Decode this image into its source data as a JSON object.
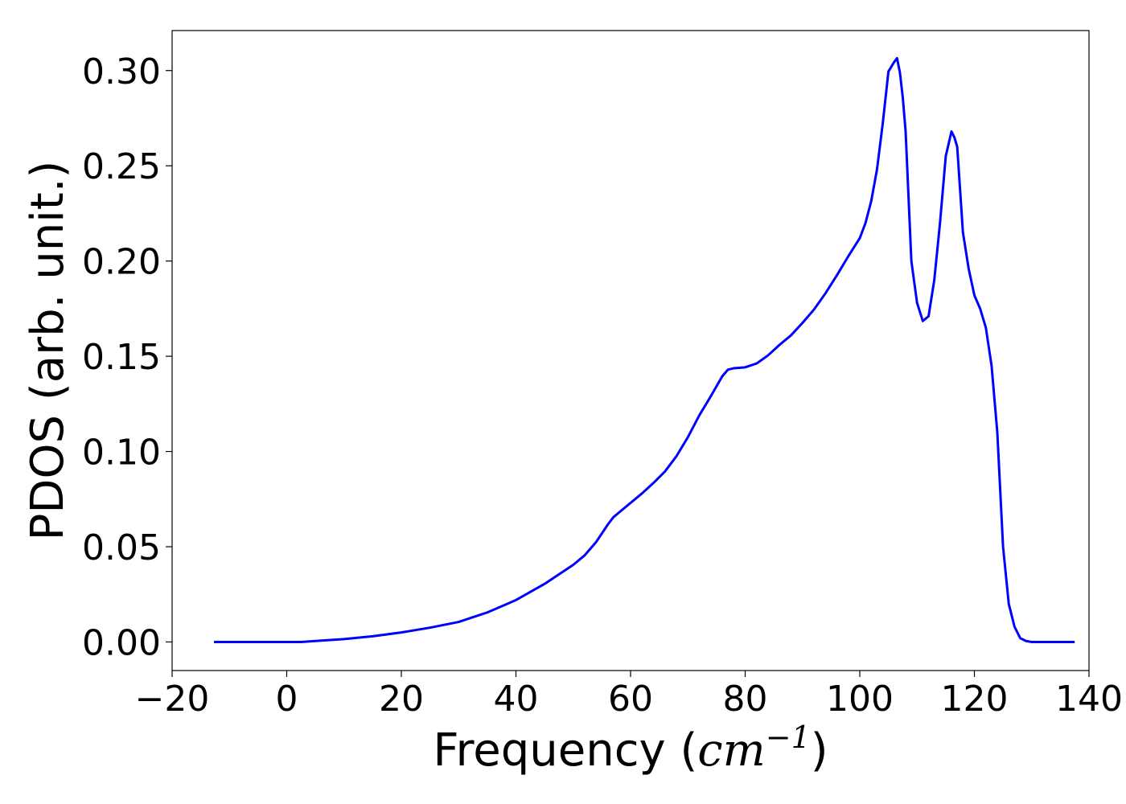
{
  "chart_data": {
    "type": "line",
    "xlabel": "Frequency (cm⁻¹)",
    "xlabel_parts": {
      "prefix": "Frequency (",
      "math_base": "cm",
      "math_sup": "−1",
      "suffix": ")"
    },
    "ylabel": "PDOS (arb. unit.)",
    "xlim": [
      -20,
      140
    ],
    "ylim": [
      -0.015,
      0.321
    ],
    "xticks": [
      -20,
      0,
      20,
      40,
      60,
      80,
      100,
      120,
      140
    ],
    "xtick_labels": [
      "−20",
      "0",
      "20",
      "40",
      "60",
      "80",
      "100",
      "120",
      "140"
    ],
    "yticks": [
      0.0,
      0.05,
      0.1,
      0.15,
      0.2,
      0.25,
      0.3
    ],
    "ytick_labels": [
      "0.00",
      "0.05",
      "0.10",
      "0.15",
      "0.20",
      "0.25",
      "0.30"
    ],
    "grid": false,
    "series": [
      {
        "color": "#0000ff",
        "x": [
          -12.7,
          0,
          2.5,
          5,
          10,
          15,
          20,
          25,
          30,
          35,
          40,
          45,
          50,
          52,
          54,
          56,
          57,
          58,
          60,
          62,
          64,
          66,
          68,
          70,
          72,
          74,
          76,
          77,
          78,
          80,
          82,
          84,
          86,
          88,
          90,
          92,
          94,
          96,
          98,
          100,
          101,
          102,
          103,
          104,
          105,
          106,
          106.5,
          107,
          107.5,
          108,
          109,
          110,
          111,
          112,
          113,
          114,
          115,
          116,
          116.5,
          117,
          118,
          119,
          120,
          121,
          122,
          123,
          124,
          125,
          126,
          127,
          128,
          129,
          130,
          135,
          137.5
        ],
        "values": [
          0.0,
          0.0,
          0.0,
          0.0005,
          0.0015,
          0.003,
          0.005,
          0.0075,
          0.0105,
          0.0155,
          0.022,
          0.0305,
          0.0405,
          0.0455,
          0.0525,
          0.0615,
          0.0655,
          0.068,
          0.073,
          0.078,
          0.0835,
          0.0895,
          0.0975,
          0.1075,
          0.119,
          0.129,
          0.1395,
          0.143,
          0.1437,
          0.1442,
          0.1462,
          0.1505,
          0.156,
          0.161,
          0.1675,
          0.1745,
          0.183,
          0.1925,
          0.2025,
          0.212,
          0.22,
          0.2315,
          0.248,
          0.272,
          0.2995,
          0.3045,
          0.3065,
          0.299,
          0.286,
          0.268,
          0.2,
          0.178,
          0.1685,
          0.171,
          0.19,
          0.22,
          0.255,
          0.268,
          0.265,
          0.26,
          0.215,
          0.196,
          0.182,
          0.175,
          0.165,
          0.145,
          0.11,
          0.05,
          0.02,
          0.008,
          0.002,
          0.0005,
          0.0,
          0.0,
          0.0
        ]
      }
    ]
  }
}
